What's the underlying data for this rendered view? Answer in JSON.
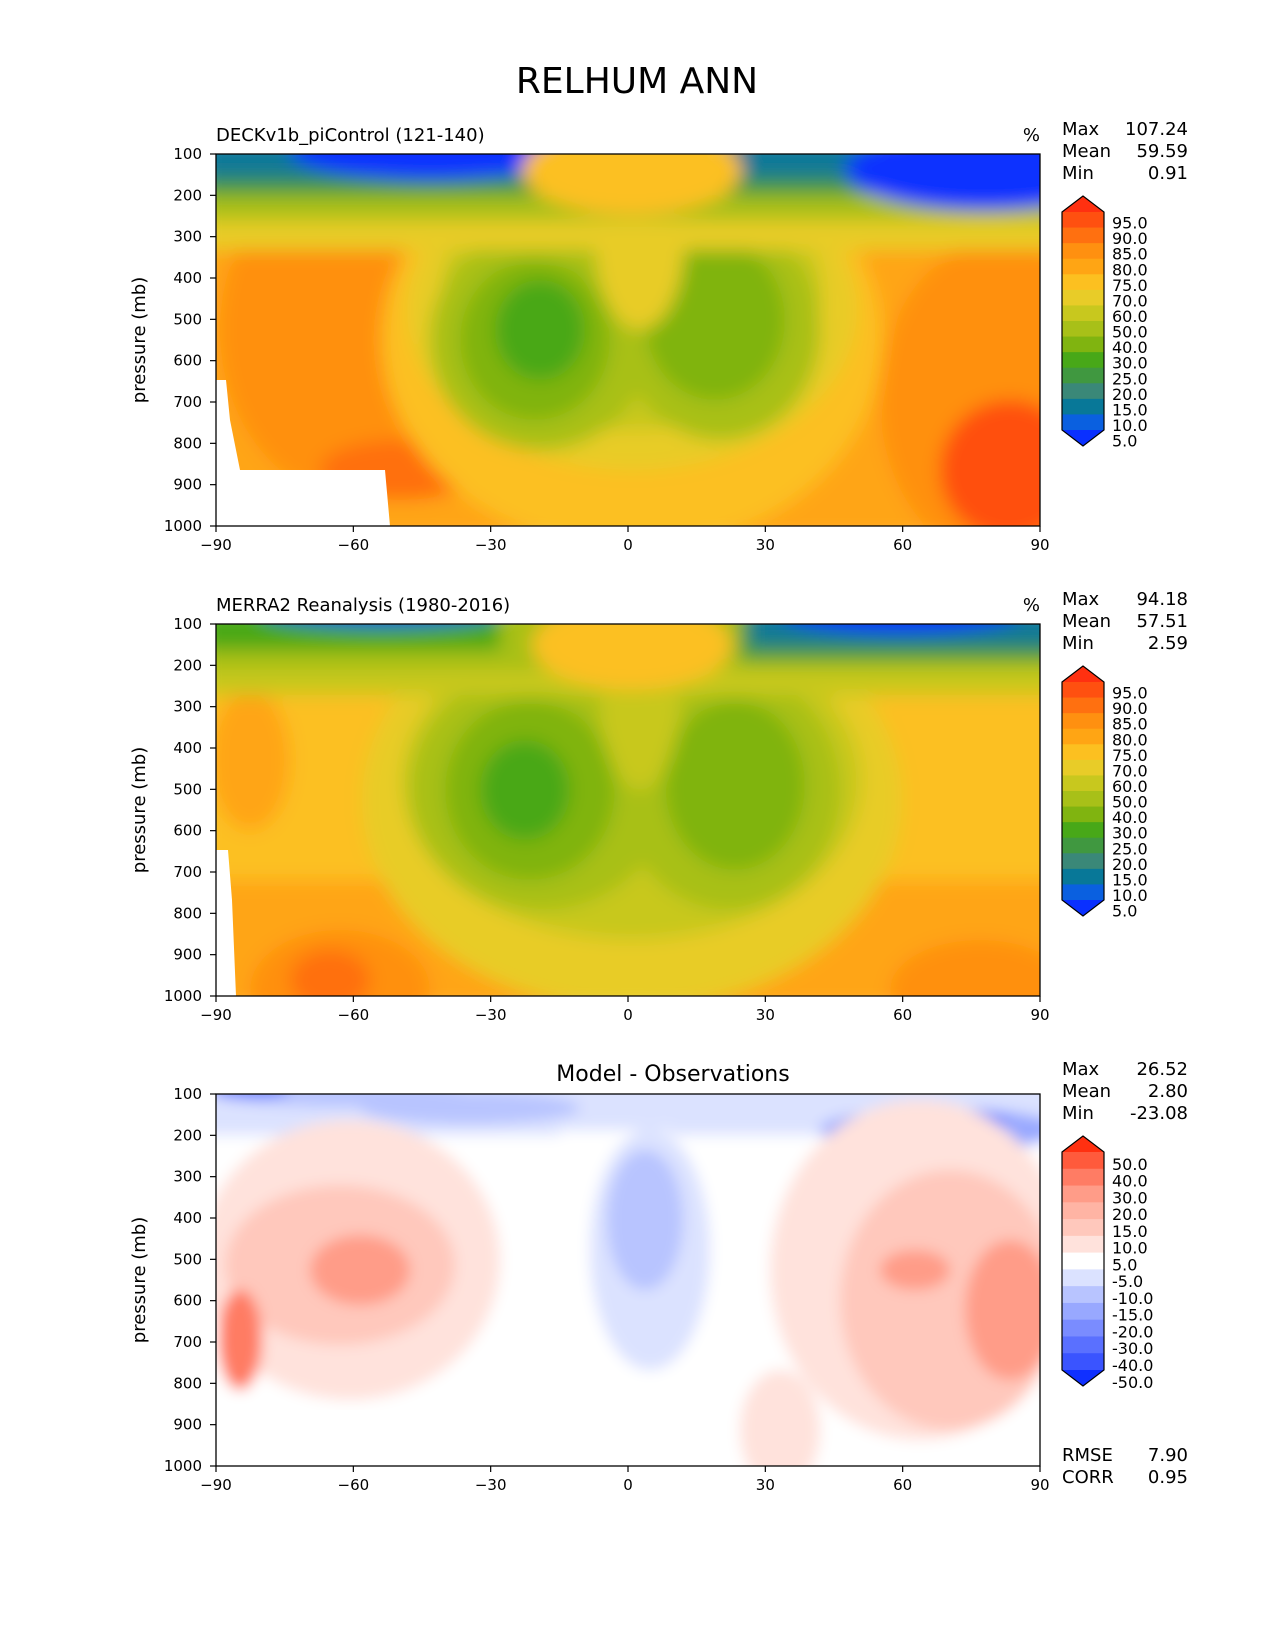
{
  "title": "RELHUM ANN",
  "chart_data": [
    {
      "type": "heatmap",
      "title": "DECKv1b_piControl (121-140)",
      "units": "%",
      "ylabel": "pressure (mb)",
      "xlim": [
        -90,
        90
      ],
      "ylim": [
        1000,
        100
      ],
      "x_ticks": [
        "−90",
        "−60",
        "−30",
        "0",
        "30",
        "60",
        "90"
      ],
      "y_ticks": [
        "100",
        "200",
        "300",
        "400",
        "500",
        "600",
        "700",
        "800",
        "900",
        "1000"
      ],
      "stats": [
        {
          "label": "Max",
          "value": "107.24"
        },
        {
          "label": "Mean",
          "value": "59.59"
        },
        {
          "label": "Min",
          "value": "0.91"
        }
      ],
      "colorbar": {
        "levels": [
          "95.0",
          "90.0",
          "85.0",
          "80.0",
          "75.0",
          "70.0",
          "60.0",
          "50.0",
          "40.0",
          "30.0",
          "25.0",
          "20.0",
          "15.0",
          "10.0",
          "5.0"
        ],
        "colors": [
          "#ff3010",
          "#ff5010",
          "#ff7010",
          "#ff9010",
          "#ffa514",
          "#fcc020",
          "#e8cc28",
          "#c8c81e",
          "#a8c018",
          "#80b410",
          "#48a818",
          "#409840",
          "#3a8878",
          "#087898",
          "#0a60e0",
          "#0a30ff"
        ],
        "extend": "both"
      }
    },
    {
      "type": "heatmap",
      "title": "MERRA2 Reanalysis (1980-2016)",
      "units": "%",
      "ylabel": "pressure (mb)",
      "xlim": [
        -90,
        90
      ],
      "ylim": [
        1000,
        100
      ],
      "x_ticks": [
        "−90",
        "−60",
        "−30",
        "0",
        "30",
        "60",
        "90"
      ],
      "y_ticks": [
        "100",
        "200",
        "300",
        "400",
        "500",
        "600",
        "700",
        "800",
        "900",
        "1000"
      ],
      "stats": [
        {
          "label": "Max",
          "value": "94.18"
        },
        {
          "label": "Mean",
          "value": "57.51"
        },
        {
          "label": "Min",
          "value": "2.59"
        }
      ],
      "colorbar": {
        "levels": [
          "95.0",
          "90.0",
          "85.0",
          "80.0",
          "75.0",
          "70.0",
          "60.0",
          "50.0",
          "40.0",
          "30.0",
          "25.0",
          "20.0",
          "15.0",
          "10.0",
          "5.0"
        ],
        "colors": [
          "#ff3010",
          "#ff5010",
          "#ff7010",
          "#ff9010",
          "#ffa514",
          "#fcc020",
          "#e8cc28",
          "#c8c81e",
          "#a8c018",
          "#80b410",
          "#48a818",
          "#409840",
          "#3a8878",
          "#087898",
          "#0a60e0",
          "#0a30ff"
        ],
        "extend": "both"
      }
    },
    {
      "type": "heatmap",
      "title": "Model - Observations",
      "ylabel": "pressure (mb)",
      "xlim": [
        -90,
        90
      ],
      "ylim": [
        1000,
        100
      ],
      "x_ticks": [
        "−90",
        "−60",
        "−30",
        "0",
        "30",
        "60",
        "90"
      ],
      "y_ticks": [
        "100",
        "200",
        "300",
        "400",
        "500",
        "600",
        "700",
        "800",
        "900",
        "1000"
      ],
      "stats": [
        {
          "label": "Max",
          "value": "26.52"
        },
        {
          "label": "Mean",
          "value": "2.80"
        },
        {
          "label": "Min",
          "value": "-23.08"
        }
      ],
      "extra_stats": [
        {
          "label": "RMSE",
          "value": "7.90"
        },
        {
          "label": "CORR",
          "value": "0.95"
        }
      ],
      "colorbar": {
        "levels": [
          "50.0",
          "40.0",
          "30.0",
          "20.0",
          "15.0",
          "10.0",
          "5.0",
          "-5.0",
          "-10.0",
          "-15.0",
          "-20.0",
          "-30.0",
          "-40.0",
          "-50.0"
        ],
        "colors": [
          "#ff3010",
          "#ff5a3c",
          "#ff7c64",
          "#ff9c88",
          "#ffb4a4",
          "#ffc8bc",
          "#ffe2dc",
          "#ffffff",
          "#dbe2ff",
          "#b8c4ff",
          "#98a8ff",
          "#7a8cff",
          "#5a70ff",
          "#3a54ff",
          "#1030ff"
        ],
        "extend": "both"
      }
    }
  ]
}
